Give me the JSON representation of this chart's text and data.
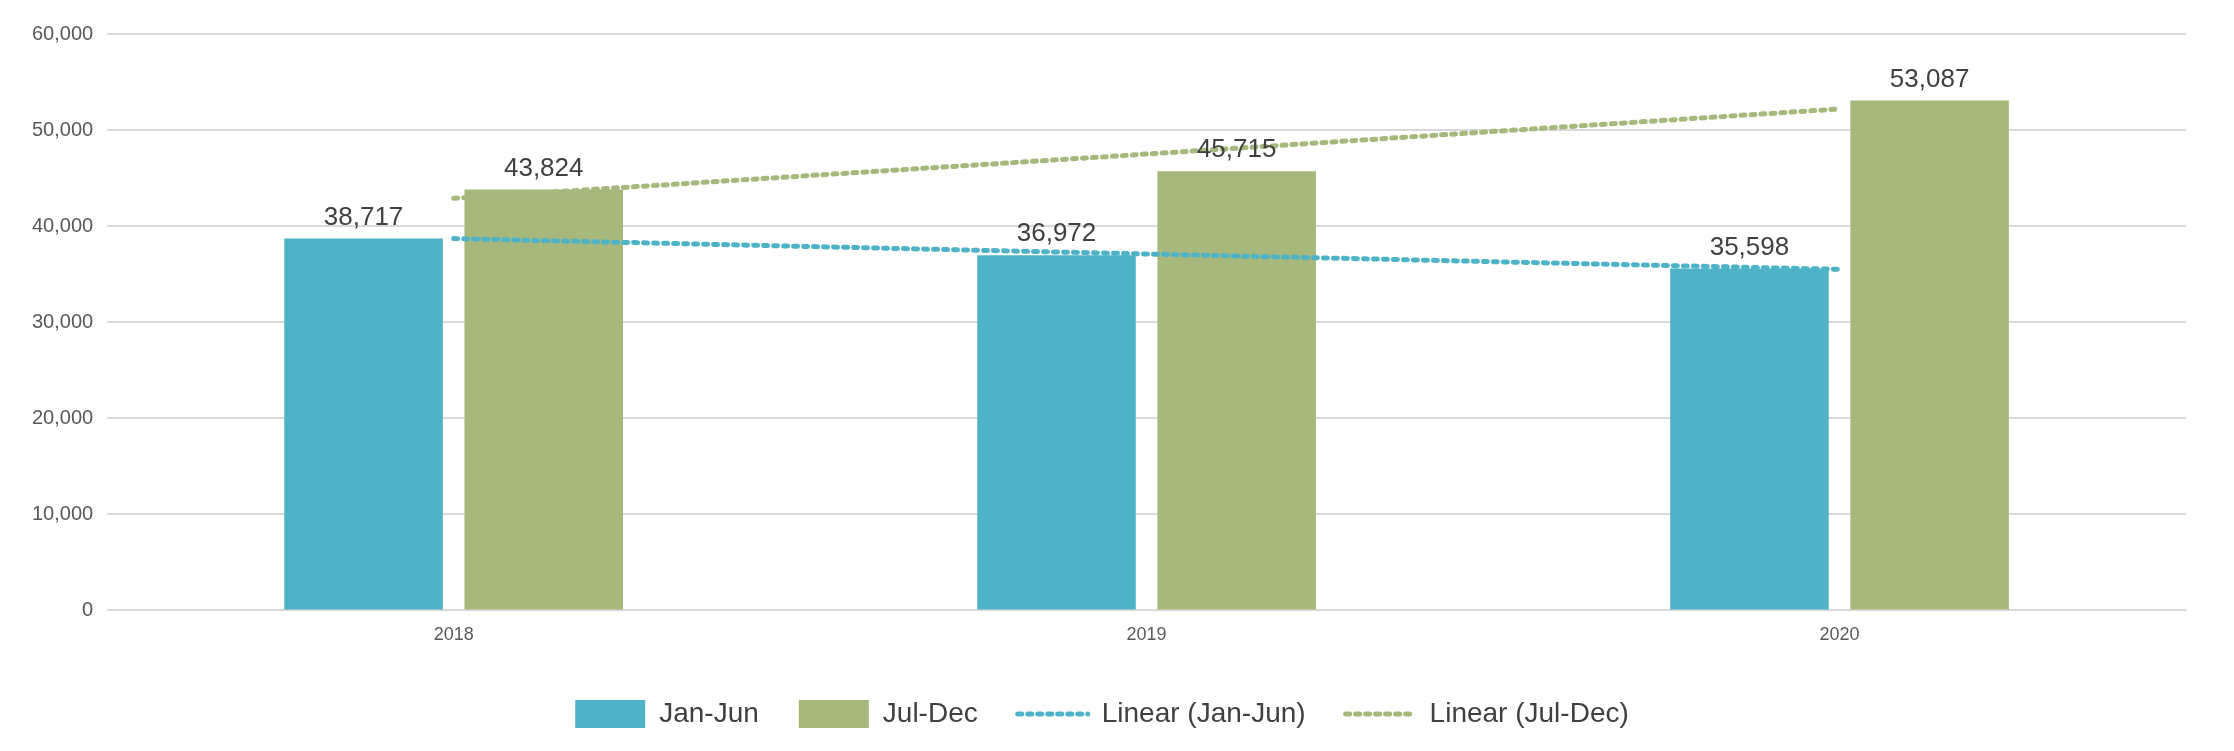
{
  "chart_data": {
    "type": "bar",
    "categories": [
      "2018",
      "2019",
      "2020"
    ],
    "series": [
      {
        "name": "Jan-Jun",
        "color": "#4fb3c8",
        "values": [
          38717,
          36972,
          35598
        ],
        "value_labels": [
          "38,717",
          "36,972",
          "35,598"
        ]
      },
      {
        "name": "Jul-Dec",
        "color": "#a7b87d",
        "values": [
          43824,
          45715,
          53087
        ],
        "value_labels": [
          "43,824",
          "45,715",
          "53,087"
        ]
      },
      {
        "name": "Linear (Jan-Jun)",
        "type": "line",
        "color": "#4fb3c8",
        "line_style": "dotted",
        "values": [
          38700,
          37100,
          35500
        ]
      },
      {
        "name": "Linear (Jul-Dec)",
        "type": "line",
        "color": "#a7b87d",
        "line_style": "dotted",
        "values": [
          42900,
          47500,
          52200
        ]
      }
    ],
    "ylim": [
      0,
      60000
    ],
    "yticks": [
      {
        "value": 0,
        "label": "0"
      },
      {
        "value": 10000,
        "label": "10,000"
      },
      {
        "value": 20000,
        "label": "20,000"
      },
      {
        "value": 30000,
        "label": "30,000"
      },
      {
        "value": 40000,
        "label": "40,000"
      },
      {
        "value": 50000,
        "label": "50,000"
      },
      {
        "value": 60000,
        "label": "60,000"
      }
    ],
    "grid": "y",
    "legend": "bottom",
    "marker": "none"
  }
}
